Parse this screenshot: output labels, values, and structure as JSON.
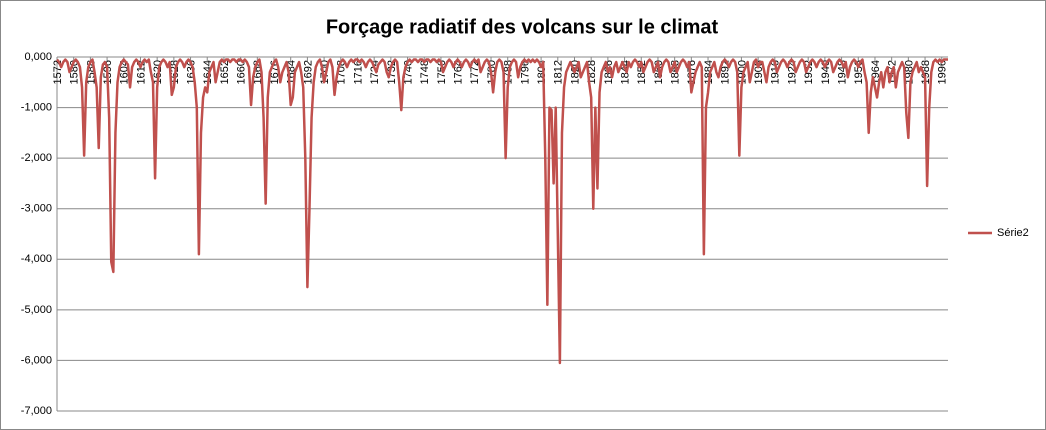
{
  "chart_data": {
    "type": "line",
    "title": "Forçage radiatif des volcans sur le climat",
    "x": [
      1572,
      1573,
      1574,
      1575,
      1576,
      1577,
      1578,
      1579,
      1580,
      1581,
      1582,
      1583,
      1584,
      1585,
      1586,
      1587,
      1588,
      1589,
      1590,
      1591,
      1592,
      1593,
      1594,
      1595,
      1596,
      1597,
      1598,
      1599,
      1600,
      1601,
      1602,
      1603,
      1604,
      1605,
      1606,
      1607,
      1608,
      1609,
      1610,
      1611,
      1612,
      1613,
      1614,
      1615,
      1616,
      1617,
      1618,
      1619,
      1620,
      1621,
      1622,
      1623,
      1624,
      1625,
      1626,
      1627,
      1628,
      1629,
      1630,
      1631,
      1632,
      1633,
      1634,
      1635,
      1636,
      1637,
      1638,
      1639,
      1640,
      1641,
      1642,
      1643,
      1644,
      1645,
      1646,
      1647,
      1648,
      1649,
      1650,
      1651,
      1652,
      1653,
      1654,
      1655,
      1656,
      1657,
      1658,
      1659,
      1660,
      1661,
      1662,
      1663,
      1664,
      1665,
      1666,
      1667,
      1668,
      1669,
      1670,
      1671,
      1672,
      1673,
      1674,
      1675,
      1676,
      1677,
      1678,
      1679,
      1680,
      1681,
      1682,
      1683,
      1684,
      1685,
      1686,
      1687,
      1688,
      1689,
      1690,
      1691,
      1692,
      1693,
      1694,
      1695,
      1696,
      1697,
      1698,
      1699,
      1700,
      1701,
      1702,
      1703,
      1704,
      1705,
      1706,
      1707,
      1708,
      1709,
      1710,
      1711,
      1712,
      1713,
      1714,
      1715,
      1716,
      1717,
      1718,
      1719,
      1720,
      1721,
      1722,
      1723,
      1724,
      1725,
      1726,
      1727,
      1728,
      1729,
      1730,
      1731,
      1732,
      1733,
      1734,
      1735,
      1736,
      1737,
      1738,
      1739,
      1740,
      1741,
      1742,
      1743,
      1744,
      1745,
      1746,
      1747,
      1748,
      1749,
      1750,
      1751,
      1752,
      1753,
      1754,
      1755,
      1756,
      1757,
      1758,
      1759,
      1760,
      1761,
      1762,
      1763,
      1764,
      1765,
      1766,
      1767,
      1768,
      1769,
      1770,
      1771,
      1772,
      1773,
      1774,
      1775,
      1776,
      1777,
      1778,
      1779,
      1780,
      1781,
      1782,
      1783,
      1784,
      1785,
      1786,
      1787,
      1788,
      1789,
      1790,
      1791,
      1792,
      1793,
      1794,
      1795,
      1796,
      1797,
      1798,
      1799,
      1800,
      1801,
      1802,
      1803,
      1804,
      1805,
      1806,
      1807,
      1808,
      1809,
      1810,
      1811,
      1812,
      1813,
      1814,
      1815,
      1816,
      1817,
      1818,
      1819,
      1820,
      1821,
      1822,
      1823,
      1824,
      1825,
      1826,
      1827,
      1828,
      1829,
      1830,
      1831,
      1832,
      1833,
      1834,
      1835,
      1836,
      1837,
      1838,
      1839,
      1840,
      1841,
      1842,
      1843,
      1844,
      1845,
      1846,
      1847,
      1848,
      1849,
      1850,
      1851,
      1852,
      1853,
      1854,
      1855,
      1856,
      1857,
      1858,
      1859,
      1860,
      1861,
      1862,
      1863,
      1864,
      1865,
      1866,
      1867,
      1868,
      1869,
      1870,
      1871,
      1872,
      1873,
      1874,
      1875,
      1876,
      1877,
      1878,
      1879,
      1880,
      1881,
      1882,
      1883,
      1884,
      1885,
      1886,
      1887,
      1888,
      1889,
      1890,
      1891,
      1892,
      1893,
      1894,
      1895,
      1896,
      1897,
      1898,
      1899,
      1900,
      1901,
      1902,
      1903,
      1904,
      1905,
      1906,
      1907,
      1908,
      1909,
      1910,
      1911,
      1912,
      1913,
      1914,
      1915,
      1916,
      1917,
      1918,
      1919,
      1920,
      1921,
      1922,
      1923,
      1924,
      1925,
      1926,
      1927,
      1928,
      1929,
      1930,
      1931,
      1932,
      1933,
      1934,
      1935,
      1936,
      1937,
      1938,
      1939,
      1940,
      1941,
      1942,
      1943,
      1944,
      1945,
      1946,
      1947,
      1948,
      1949,
      1950,
      1951,
      1952,
      1953,
      1954,
      1955,
      1956,
      1957,
      1958,
      1959,
      1960,
      1961,
      1962,
      1963,
      1964,
      1965,
      1966,
      1967,
      1968,
      1969,
      1970,
      1971,
      1972,
      1973,
      1974,
      1975,
      1976,
      1977,
      1978,
      1979,
      1980,
      1981,
      1982,
      1983,
      1984,
      1985,
      1986,
      1987,
      1988,
      1989,
      1990,
      1991,
      1992,
      1993,
      1994,
      1995,
      1996,
      1997,
      1998,
      1999
    ],
    "series": [
      {
        "name": "Série2",
        "color": "#c0504d",
        "values": [
          -0.05,
          -0.1,
          -0.2,
          -0.1,
          -0.05,
          -0.1,
          -0.3,
          -0.2,
          -0.1,
          -0.05,
          -0.1,
          -0.2,
          -0.6,
          -1.95,
          -0.5,
          -0.2,
          -0.1,
          -0.05,
          -0.3,
          -0.6,
          -1.8,
          -0.4,
          -0.15,
          -0.1,
          -0.2,
          -1.2,
          -4.05,
          -4.25,
          -1.5,
          -0.5,
          -0.2,
          -0.1,
          -0.05,
          -0.1,
          -0.15,
          -0.6,
          -0.2,
          -0.1,
          -0.05,
          -0.1,
          -0.2,
          -0.1,
          -0.05,
          -0.1,
          -0.05,
          -0.3,
          -0.5,
          -2.4,
          -0.6,
          -0.2,
          -0.1,
          -0.05,
          -0.1,
          -0.2,
          -0.1,
          -0.75,
          -0.6,
          -0.2,
          -0.1,
          -0.05,
          -0.1,
          -0.2,
          -0.1,
          -0.05,
          -0.1,
          -0.2,
          -0.5,
          -1.0,
          -3.9,
          -1.5,
          -0.8,
          -0.6,
          -0.7,
          -0.3,
          -0.2,
          -0.1,
          -0.5,
          -0.3,
          -0.1,
          -0.05,
          -0.1,
          -0.05,
          -0.05,
          -0.1,
          -0.05,
          -0.05,
          -0.1,
          -0.05,
          -0.05,
          -0.1,
          -0.05,
          -0.1,
          -0.2,
          -0.95,
          -0.4,
          -0.2,
          -0.1,
          -0.05,
          -0.3,
          -1.2,
          -2.9,
          -0.8,
          -0.3,
          -0.2,
          -0.1,
          -0.05,
          -0.2,
          -0.5,
          -0.3,
          -0.2,
          -0.1,
          -0.3,
          -0.95,
          -0.8,
          -0.3,
          -0.2,
          -0.1,
          -0.3,
          -0.6,
          -2.0,
          -4.55,
          -3.0,
          -1.2,
          -0.5,
          -0.2,
          -0.1,
          -0.05,
          -0.2,
          -0.5,
          -0.3,
          -0.1,
          -0.05,
          -0.2,
          -0.75,
          -0.4,
          -0.2,
          -0.1,
          -0.05,
          -0.1,
          -0.2,
          -0.1,
          -0.05,
          -0.1,
          -0.05,
          -0.05,
          -0.1,
          -0.05,
          -0.1,
          -0.2,
          -0.1,
          -0.05,
          -0.1,
          -0.2,
          -0.3,
          -0.15,
          -0.1,
          -0.05,
          -0.1,
          -0.3,
          -0.4,
          -0.2,
          -0.1,
          -0.05,
          -0.1,
          -0.5,
          -1.05,
          -0.4,
          -0.2,
          -0.1,
          -0.05,
          -0.1,
          -0.05,
          -0.05,
          -0.1,
          -0.05,
          -0.05,
          -0.1,
          -0.05,
          -0.05,
          -0.1,
          -0.05,
          -0.05,
          -0.1,
          -0.05,
          -0.1,
          -0.3,
          -0.2,
          -0.1,
          -0.05,
          -0.1,
          -0.2,
          -0.1,
          -0.05,
          -0.1,
          -0.2,
          -0.1,
          -0.05,
          -0.1,
          -0.2,
          -0.1,
          -0.05,
          -0.1,
          -0.05,
          -0.3,
          -0.2,
          -0.1,
          -0.05,
          -0.1,
          -0.3,
          -0.7,
          -0.3,
          -0.1,
          -0.05,
          -0.1,
          -0.3,
          -2.0,
          -0.6,
          -0.2,
          -0.1,
          -0.05,
          -0.1,
          -0.4,
          -0.2,
          -0.1,
          -0.05,
          -0.1,
          -0.05,
          -0.1,
          -0.05,
          -0.1,
          -0.05,
          -0.1,
          -0.2,
          -0.1,
          -2.0,
          -4.9,
          -1.0,
          -1.05,
          -2.5,
          -1.0,
          -3.5,
          -6.05,
          -1.5,
          -0.6,
          -0.3,
          -0.2,
          -0.1,
          -0.2,
          -0.3,
          -0.2,
          -0.1,
          -0.4,
          -0.3,
          -0.2,
          -0.1,
          -0.5,
          -0.8,
          -3.0,
          -1.0,
          -2.6,
          -0.7,
          -0.3,
          -0.2,
          -0.1,
          -0.3,
          -0.2,
          -0.4,
          -0.2,
          -0.1,
          -0.3,
          -0.2,
          -0.1,
          -0.2,
          -0.3,
          -0.1,
          -0.2,
          -0.1,
          -0.05,
          -0.1,
          -0.2,
          -0.1,
          -0.3,
          -0.2,
          -0.1,
          -0.05,
          -0.1,
          -0.3,
          -0.2,
          -0.1,
          -0.4,
          -0.2,
          -0.1,
          -0.05,
          -0.1,
          -0.3,
          -0.2,
          -0.1,
          -0.3,
          -0.2,
          -0.1,
          -0.05,
          -0.1,
          -0.2,
          -0.1,
          -0.7,
          -0.5,
          -0.3,
          -0.2,
          -0.1,
          -0.2,
          -3.9,
          -1.0,
          -0.7,
          -0.3,
          -0.2,
          -0.1,
          -0.3,
          -0.4,
          -0.2,
          -0.1,
          -0.05,
          -0.1,
          -0.2,
          -0.1,
          -0.05,
          -0.1,
          -0.3,
          -1.95,
          -0.6,
          -0.3,
          -0.2,
          -0.1,
          -0.5,
          -0.3,
          -0.1,
          -0.05,
          -0.2,
          -0.1,
          -0.1,
          -0.3,
          -0.5,
          -0.2,
          -0.1,
          -0.05,
          -0.1,
          -0.3,
          -0.2,
          -0.1,
          -0.05,
          -0.1,
          -0.2,
          -0.1,
          -0.05,
          -0.1,
          -0.3,
          -0.2,
          -0.1,
          -0.05,
          -0.1,
          -0.3,
          -0.2,
          -0.1,
          -0.05,
          -0.1,
          -0.2,
          -0.1,
          -0.05,
          -0.1,
          -0.2,
          -0.1,
          -0.05,
          -0.1,
          -0.3,
          -0.2,
          -0.1,
          -0.05,
          -0.1,
          -0.2,
          -0.1,
          -0.4,
          -0.2,
          -0.1,
          -0.05,
          -0.1,
          -0.2,
          -0.1,
          -0.05,
          -0.3,
          -0.5,
          -1.5,
          -0.7,
          -0.4,
          -0.6,
          -0.8,
          -0.5,
          -0.3,
          -0.6,
          -0.3,
          -0.2,
          -0.5,
          -0.3,
          -0.2,
          -0.6,
          -0.3,
          -0.2,
          -0.1,
          -0.2,
          -1.1,
          -1.6,
          -0.5,
          -0.3,
          -0.2,
          -0.1,
          -0.3,
          -0.2,
          -0.3,
          -0.4,
          -2.55,
          -1.0,
          -0.3,
          -0.1,
          -0.05,
          -0.1,
          -0.05,
          -0.1,
          -0.05,
          -0.05,
          -0.05
        ]
      }
    ],
    "xlim": [
      1572,
      1999
    ],
    "xticks": [
      1572,
      1580,
      1588,
      1596,
      1604,
      1612,
      1620,
      1628,
      1636,
      1644,
      1652,
      1660,
      1668,
      1676,
      1684,
      1692,
      1700,
      1708,
      1716,
      1724,
      1732,
      1740,
      1748,
      1756,
      1764,
      1772,
      1780,
      1788,
      1796,
      1804,
      1812,
      1820,
      1828,
      1836,
      1844,
      1852,
      1860,
      1868,
      1876,
      1884,
      1892,
      1900,
      1908,
      1916,
      1924,
      1932,
      1940,
      1948,
      1956,
      1964,
      1972,
      1980,
      1988,
      1996
    ],
    "ylim": [
      -7,
      0
    ],
    "yticks": [
      {
        "value": 0,
        "label": "0,000"
      },
      {
        "value": -1,
        "label": "-1,000"
      },
      {
        "value": -2,
        "label": "-2,000"
      },
      {
        "value": -3,
        "label": "-3,000"
      },
      {
        "value": -4,
        "label": "-4,000"
      },
      {
        "value": -5,
        "label": "-5,000"
      },
      {
        "value": -6,
        "label": "-6,000"
      },
      {
        "value": -7,
        "label": "-7,000"
      }
    ],
    "grid": true,
    "legend": "right"
  }
}
